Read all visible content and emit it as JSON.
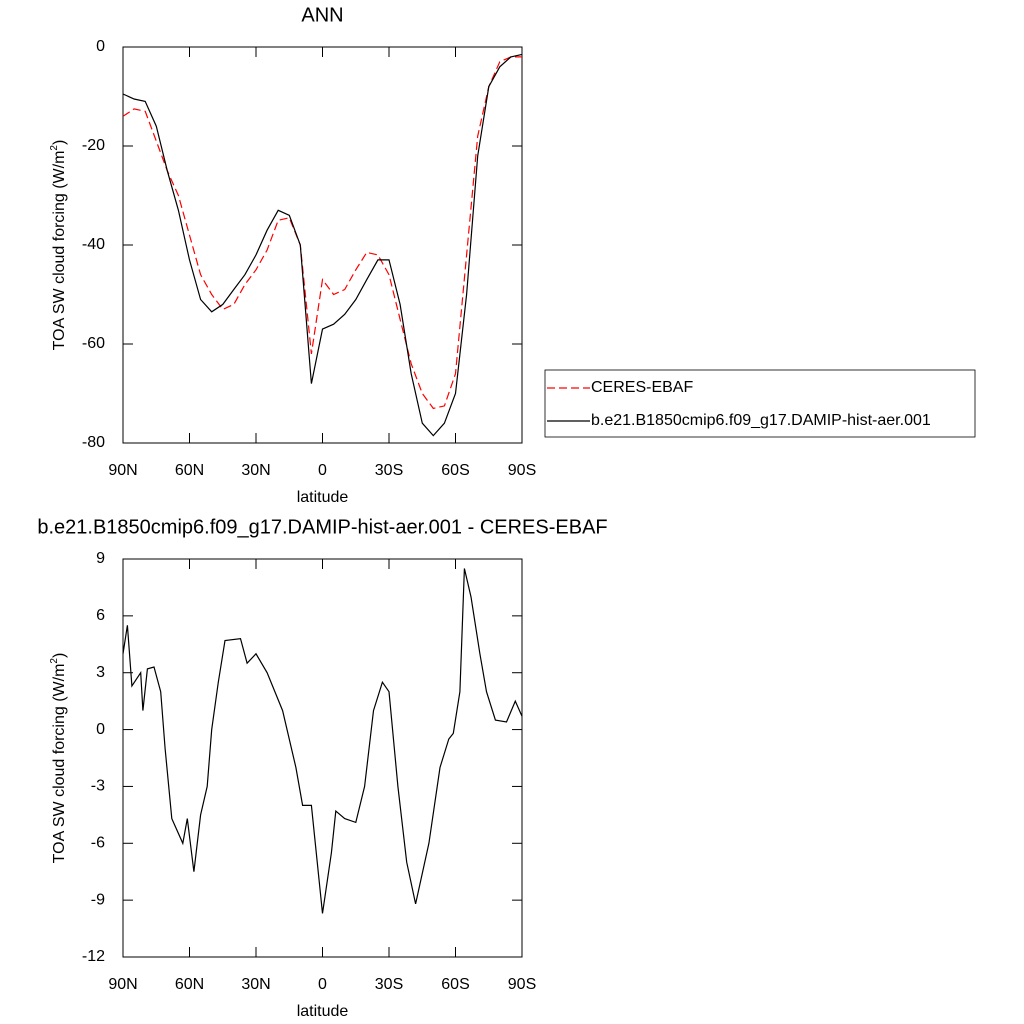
{
  "chart_data": [
    {
      "type": "line",
      "title": "ANN",
      "xlabel": "latitude",
      "ylabel": "TOA SW cloud forcing (W/m²)",
      "x": [
        90,
        85,
        80,
        75,
        70,
        65,
        60,
        55,
        50,
        45,
        40,
        35,
        30,
        25,
        20,
        15,
        10,
        5,
        0,
        -5,
        -10,
        -15,
        -20,
        -25,
        -30,
        -35,
        -40,
        -45,
        -50,
        -55,
        -60,
        -65,
        -70,
        -75,
        -80,
        -85,
        -90
      ],
      "series": [
        {
          "name": "CERES-EBAF",
          "color": "#ff0000",
          "linestyle": "dashed",
          "values": [
            -14,
            -12.5,
            -13,
            -19,
            -25,
            -30,
            -38,
            -46,
            -50,
            -53,
            -52,
            -48,
            -45,
            -41,
            -35,
            -34.5,
            -40,
            -62,
            -47,
            -50,
            -49,
            -45,
            -41.5,
            -42,
            -46,
            -55,
            -64,
            -70,
            -73,
            -72.5,
            -66,
            -42,
            -18,
            -8,
            -3,
            -2,
            -2
          ]
        },
        {
          "name": "b.e21.B1850cmip6.f09_g17.DAMIP-hist-aer.001",
          "color": "#000000",
          "linestyle": "solid",
          "values": [
            -9.5,
            -10.5,
            -11,
            -16,
            -25,
            -33,
            -43,
            -51,
            -53.5,
            -52,
            -49,
            -46,
            -42,
            -37,
            -33,
            -34,
            -40,
            -68,
            -57,
            -56,
            -54,
            -51,
            -47,
            -43,
            -43,
            -52,
            -66,
            -76,
            -78.5,
            -76,
            -70,
            -50,
            -22,
            -8,
            -4,
            -2,
            -1.5
          ]
        }
      ],
      "xlim": [
        90,
        -90
      ],
      "xticks": [
        {
          "value": 90,
          "label": "90N"
        },
        {
          "value": 60,
          "label": "60N"
        },
        {
          "value": 30,
          "label": "30N"
        },
        0,
        {
          "value": -30,
          "label": "30S"
        },
        {
          "value": -60,
          "label": "60S"
        },
        {
          "value": -90,
          "label": "90S"
        }
      ],
      "ylim": [
        -80,
        0
      ],
      "yticks": [
        -80,
        -60,
        -40,
        -20,
        0
      ],
      "legend": "right"
    },
    {
      "type": "line",
      "title": "b.e21.B1850cmip6.f09_g17.DAMIP-hist-aer.001 - CERES-EBAF",
      "xlabel": "latitude",
      "ylabel": "TOA SW cloud forcing (W/m²)",
      "x": [
        90,
        88,
        86,
        82,
        81,
        79,
        76,
        73,
        71,
        68,
        63,
        61,
        58,
        55,
        52,
        50,
        47,
        44,
        37,
        34,
        30,
        25,
        18,
        12,
        9,
        5,
        0,
        -4,
        -6,
        -10,
        -15,
        -19,
        -23,
        -27,
        -30,
        -34,
        -38,
        -42,
        -48,
        -53,
        -57,
        -59,
        -62,
        -64,
        -67,
        -71,
        -74,
        -78,
        -83,
        -87,
        -90
      ],
      "color": "#000000",
      "values": [
        4,
        5.5,
        2.3,
        3,
        1,
        3.2,
        3.3,
        2,
        -1,
        -4.7,
        -6,
        -4.7,
        -7.5,
        -4.5,
        -3,
        0,
        2.5,
        4.7,
        4.8,
        3.5,
        4,
        3,
        1,
        -2,
        -4,
        -4,
        -9.7,
        -6.5,
        -4.3,
        -4.7,
        -4.9,
        -3,
        1,
        2.5,
        2,
        -3,
        -7,
        -9.2,
        -6,
        -2,
        -0.5,
        -0.2,
        2,
        8.5,
        7,
        4,
        2,
        0.5,
        0.4,
        1.5,
        0.7
      ],
      "xlim": [
        90,
        -90
      ],
      "xticks": [
        {
          "value": 90,
          "label": "90N"
        },
        {
          "value": 60,
          "label": "60N"
        },
        {
          "value": 30,
          "label": "30N"
        },
        0,
        {
          "value": -30,
          "label": "30S"
        },
        {
          "value": -60,
          "label": "60S"
        },
        {
          "value": -90,
          "label": "90S"
        }
      ],
      "ylim": [
        -12,
        9
      ],
      "yticks": [
        -12,
        -9,
        -6,
        -3,
        0,
        3,
        6,
        9
      ]
    }
  ]
}
